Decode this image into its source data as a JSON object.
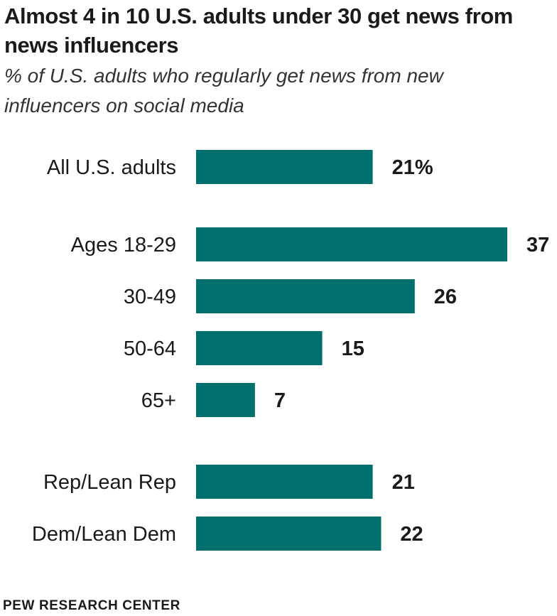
{
  "title": "Almost 4 in 10 U.S. adults under 30 get news from news influencers",
  "subtitle": "% of U.S. adults who regularly get news from new influencers on social media",
  "source": "PEW RESEARCH CENTER",
  "colors": {
    "bar": "#00706f",
    "text": "#1a1a1a"
  },
  "chart_data": {
    "type": "bar",
    "orientation": "horizontal",
    "title": "Almost 4 in 10 U.S. adults under 30 get news from news influencers",
    "subtitle": "% of U.S. adults who regularly get news from new influencers on social media",
    "categories": [
      "All U.S. adults",
      "Ages 18-29",
      "30-49",
      "50-64",
      "65+",
      "Rep/Lean Rep",
      "Dem/Lean Dem"
    ],
    "values": [
      21,
      37,
      26,
      15,
      7,
      21,
      22
    ],
    "value_labels": [
      "21%",
      "37",
      "26",
      "15",
      "7",
      "21",
      "22"
    ],
    "groups": [
      [
        "All U.S. adults"
      ],
      [
        "Ages 18-29",
        "30-49",
        "50-64",
        "65+"
      ],
      [
        "Rep/Lean Rep",
        "Dem/Lean Dem"
      ]
    ],
    "xlim": [
      0,
      37
    ],
    "grid": false,
    "legend": "none"
  }
}
